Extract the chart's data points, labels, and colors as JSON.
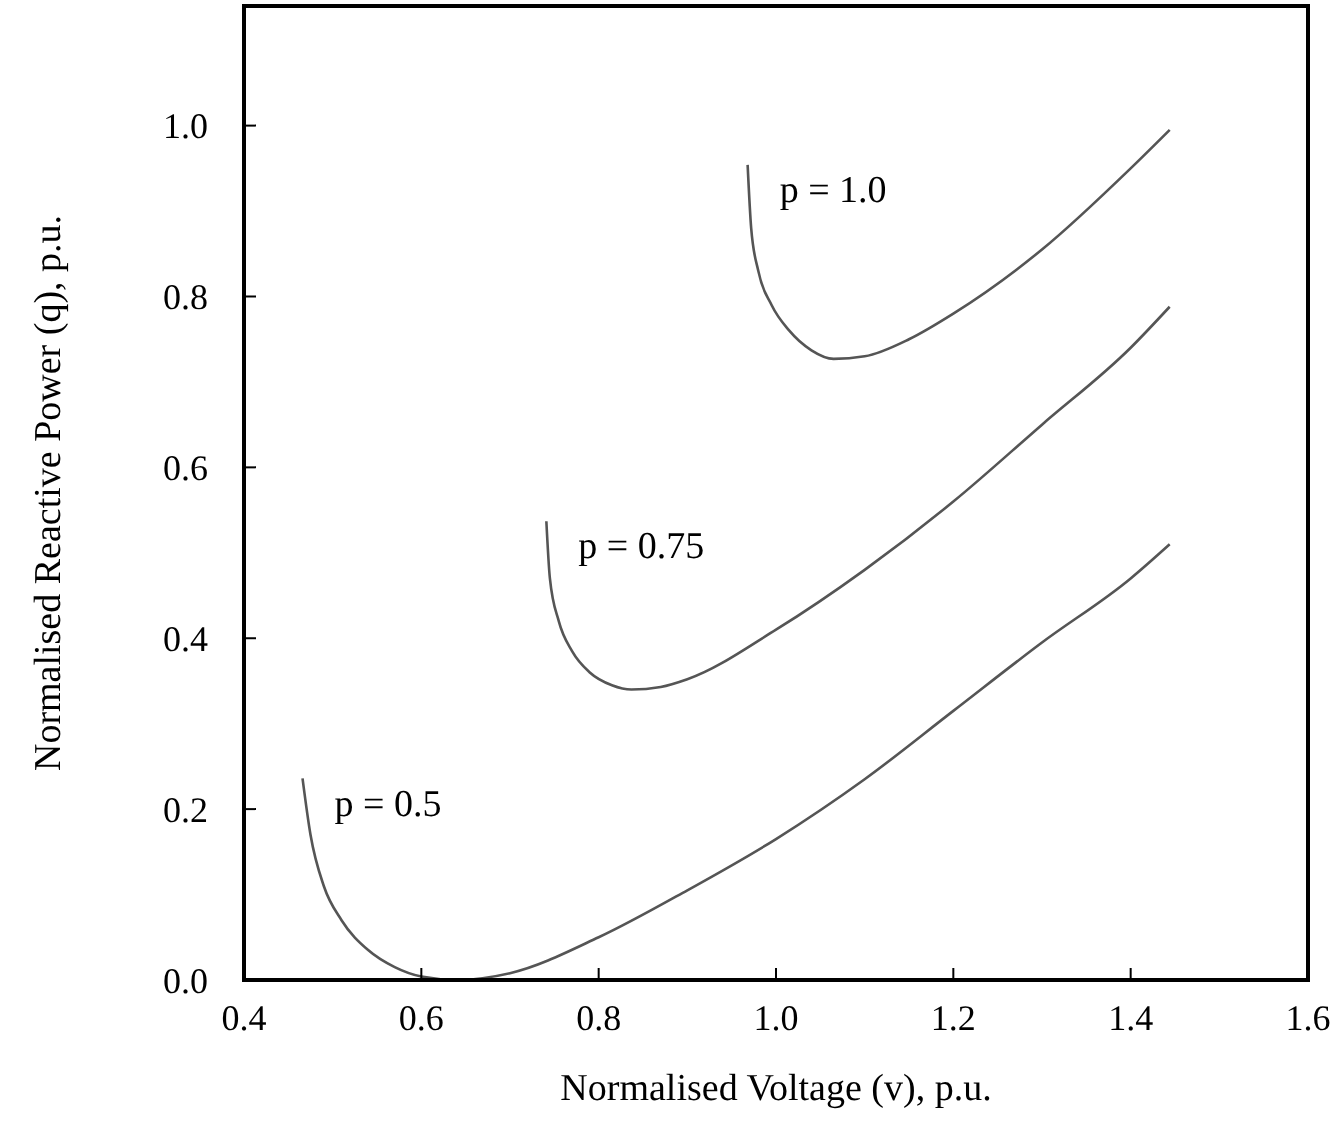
{
  "chart_data": {
    "type": "line",
    "xlabel": "Normalised Voltage (v), p.u.",
    "ylabel": "Normalised Reactive Power (q), p.u.",
    "xlim": [
      0.4,
      1.6
    ],
    "xticks": [
      {
        "value": 0.4,
        "label": "0.4"
      },
      {
        "value": 0.6,
        "label": "0.6"
      },
      {
        "value": 0.8,
        "label": "0.8"
      },
      {
        "value": 1.0,
        "label": "1.0"
      },
      {
        "value": 1.2,
        "label": "1.2"
      },
      {
        "value": 1.4,
        "label": "1.4"
      },
      {
        "value": 1.6,
        "label": "1.6"
      }
    ],
    "ylim": [
      0,
      1.14
    ],
    "yticks": [
      {
        "value": 0,
        "label": "0.0"
      },
      {
        "value": 0.2,
        "label": "0.2"
      },
      {
        "value": 0.4,
        "label": "0.4"
      },
      {
        "value": 0.6,
        "label": "0.6"
      },
      {
        "value": 0.8,
        "label": "0.8"
      },
      {
        "value": 1.0,
        "label": "1.0"
      }
    ],
    "grid": false,
    "line_style": "solid",
    "marker": "none",
    "series": [
      {
        "name": "p = 0.5",
        "color": "#555555",
        "x": [
          0.466,
          0.475,
          0.49,
          0.51,
          0.54,
          0.57,
          0.6,
          0.64,
          0.7,
          0.8,
          0.9,
          1.0,
          1.1,
          1.2,
          1.3,
          1.4,
          1.444
        ],
        "values": [
          0.236,
          0.17,
          0.11,
          0.07,
          0.035,
          0.015,
          0.004,
          0.0,
          0.008,
          0.05,
          0.105,
          0.165,
          0.235,
          0.315,
          0.395,
          0.47,
          0.51
        ]
      },
      {
        "name": "p = 0.75",
        "color": "#555555",
        "x": [
          0.741,
          0.745,
          0.755,
          0.77,
          0.79,
          0.815,
          0.837,
          0.87,
          0.9,
          1.0,
          1.1,
          1.2,
          1.3,
          1.4,
          1.444
        ],
        "values": [
          0.537,
          0.47,
          0.42,
          0.385,
          0.36,
          0.345,
          0.34,
          0.343,
          0.352,
          0.41,
          0.48,
          0.56,
          0.65,
          0.74,
          0.788
        ]
      },
      {
        "name": "p = 1.0",
        "color": "#555555",
        "x": [
          0.968,
          0.972,
          0.98,
          0.995,
          1.015,
          1.04,
          1.065,
          1.1,
          1.15,
          1.2,
          1.3,
          1.4,
          1.444
        ],
        "values": [
          0.954,
          0.88,
          0.83,
          0.79,
          0.76,
          0.737,
          0.727,
          0.73,
          0.75,
          0.78,
          0.855,
          0.95,
          0.995
        ]
      }
    ]
  }
}
